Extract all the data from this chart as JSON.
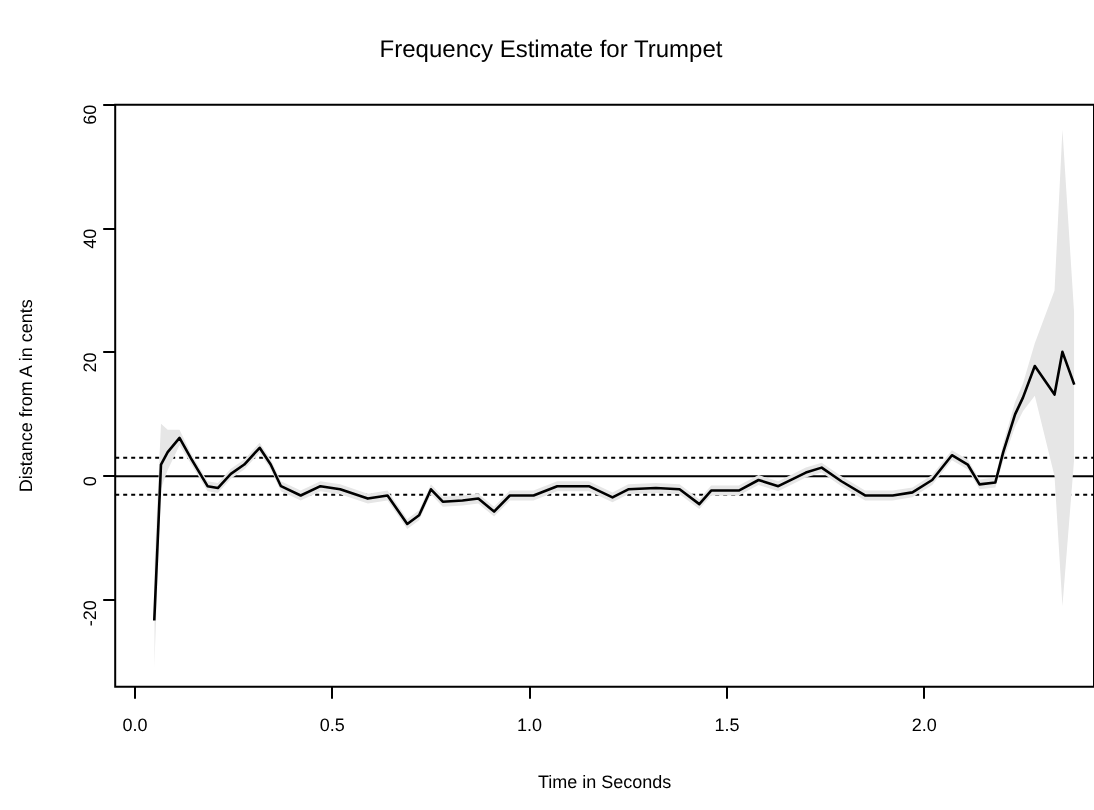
{
  "chart_data": {
    "type": "line",
    "title": "Frequency Estimate for Trumpet",
    "xlabel": "Time in Seconds",
    "ylabel": "Distance from A in cents",
    "xlim": [
      -0.05,
      2.43
    ],
    "ylim": [
      -34,
      60
    ],
    "xticks": [
      {
        "value": 0,
        "label": "0.0"
      },
      {
        "value": 0.5,
        "label": "0.5"
      },
      {
        "value": 1,
        "label": "1.0"
      },
      {
        "value": 1.5,
        "label": "1.5"
      },
      {
        "value": 2,
        "label": "2.0"
      }
    ],
    "yticks": [
      -20,
      0,
      20,
      40,
      60
    ],
    "grid": false,
    "legend": false,
    "marker": "none",
    "line_style": "solid",
    "ref_lines": [
      {
        "axis": "y",
        "value": 0,
        "color": "#000000",
        "line_style": "solid"
      },
      {
        "axis": "y",
        "value": 3,
        "color": "#000000",
        "line_style": "dotted"
      },
      {
        "axis": "y",
        "value": -3,
        "color": "#000000",
        "line_style": "dotted"
      }
    ],
    "series": [
      {
        "color": "#000000",
        "x": [
          0.049,
          0.066,
          0.083,
          0.113,
          0.142,
          0.184,
          0.21,
          0.243,
          0.277,
          0.316,
          0.344,
          0.37,
          0.42,
          0.47,
          0.52,
          0.59,
          0.64,
          0.69,
          0.72,
          0.75,
          0.78,
          0.83,
          0.87,
          0.91,
          0.95,
          1.01,
          1.07,
          1.15,
          1.21,
          1.25,
          1.32,
          1.38,
          1.43,
          1.46,
          1.53,
          1.58,
          1.63,
          1.7,
          1.74,
          1.79,
          1.85,
          1.92,
          1.97,
          2.02,
          2.07,
          2.11,
          2.14,
          2.18,
          2.2,
          2.23,
          2.25,
          2.28,
          2.33,
          2.35,
          2.38
        ],
        "values": [
          -23.3,
          1.9,
          3.9,
          6.2,
          2.9,
          -1.6,
          -1.9,
          0.4,
          1.9,
          4.6,
          1.9,
          -1.6,
          -3.1,
          -1.6,
          -2.1,
          -3.6,
          -3.1,
          -7.7,
          -6.3,
          -2.1,
          -4.1,
          -3.9,
          -3.6,
          -5.7,
          -3.1,
          -3.1,
          -1.6,
          -1.6,
          -3.4,
          -2.1,
          -1.9,
          -2.1,
          -4.5,
          -2.3,
          -2.3,
          -0.6,
          -1.6,
          0.6,
          1.4,
          -0.8,
          -3.1,
          -3.1,
          -2.6,
          -0.6,
          3.4,
          1.9,
          -1.3,
          -1,
          3.9,
          10,
          12.7,
          17.8,
          13.2,
          20.1,
          14.8
        ],
        "lower": [
          -31,
          -2,
          1,
          5,
          2,
          -2.4,
          -2.7,
          -0.4,
          1.1,
          3.8,
          1.1,
          -2.4,
          -3.9,
          -2.4,
          -2.9,
          -4.4,
          -3.9,
          -8.5,
          -7.1,
          -2.9,
          -4.9,
          -4.7,
          -4.4,
          -6.5,
          -3.9,
          -3.9,
          -2.4,
          -2.4,
          -4.2,
          -2.9,
          -2.7,
          -2.9,
          -5.3,
          -3.1,
          -3.1,
          -1.4,
          -2.4,
          -0.2,
          0.6,
          -1.6,
          -3.9,
          -3.9,
          -3.4,
          -1.4,
          2.6,
          1.1,
          -2.1,
          -1.8,
          2.5,
          8,
          10.5,
          13,
          0,
          -21,
          3
        ],
        "upper": [
          -15,
          8.5,
          7.5,
          7.5,
          3.7,
          -0.8,
          -1.1,
          1.2,
          2.7,
          5.4,
          2.7,
          -0.8,
          -2.3,
          -0.8,
          -1.3,
          -2.8,
          -2.3,
          -6.9,
          -5.5,
          -1.3,
          -3.3,
          -3.1,
          -2.8,
          -4.9,
          -2.3,
          -2.3,
          -0.8,
          -0.8,
          -2.6,
          -1.3,
          -1.1,
          -1.3,
          -3.7,
          -1.5,
          -1.5,
          0.2,
          -0.8,
          1.4,
          2.2,
          0,
          -2.3,
          -2.3,
          -1.8,
          0.2,
          4.2,
          2.7,
          -0.5,
          -0.2,
          5.3,
          12,
          15,
          21.5,
          30,
          56,
          26
        ]
      }
    ]
  }
}
